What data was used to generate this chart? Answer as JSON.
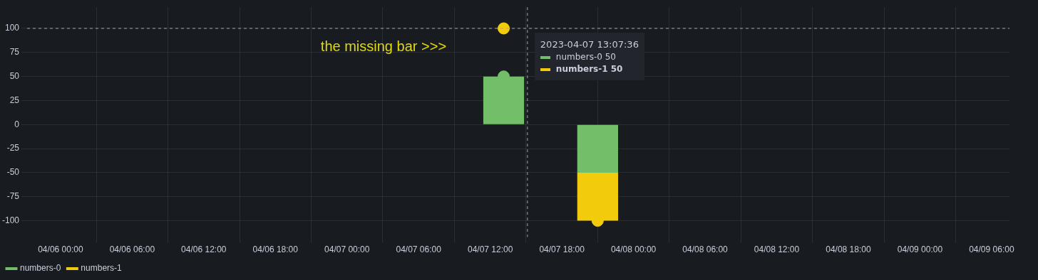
{
  "chart_data": {
    "type": "bar",
    "stacked": true,
    "x": [
      "2023-04-07T13:07:36",
      "2023-04-07T21:00"
    ],
    "series": [
      {
        "name": "numbers-0",
        "color": "#73bf69",
        "values": [
          50,
          -50
        ]
      },
      {
        "name": "numbers-1",
        "color": "#f2cc0c",
        "values": [
          null,
          -50
        ]
      },
      {
        "type": "scatter",
        "x": [
          "2023-04-07T13:07:36",
          "2023-04-07T13:07:36",
          "2023-04-07T21:00"
        ],
        "colors": [
          "#73bf69",
          "#f2cc0c",
          "#f2cc0c"
        ],
        "values": [
          50,
          100,
          -100
        ]
      }
    ],
    "xlim": [
      "2023-04-05T21:12",
      "2023-04-09T07:30"
    ],
    "xticks": [
      {
        "value": "2023-04-06T00:00",
        "label": "04/06 00:00"
      },
      {
        "value": "2023-04-06T06:00",
        "label": "04/06 06:00"
      },
      {
        "value": "2023-04-06T12:00",
        "label": "04/06 12:00"
      },
      {
        "value": "2023-04-06T18:00",
        "label": "04/06 18:00"
      },
      {
        "value": "2023-04-07T00:00",
        "label": "04/07 00:00"
      },
      {
        "value": "2023-04-07T06:00",
        "label": "04/07 06:00"
      },
      {
        "value": "2023-04-07T12:00",
        "label": "04/07 12:00"
      },
      {
        "value": "2023-04-07T18:00",
        "label": "04/07 18:00"
      },
      {
        "value": "2023-04-08T00:00",
        "label": "04/08 00:00"
      },
      {
        "value": "2023-04-08T06:00",
        "label": "04/08 06:00"
      },
      {
        "value": "2023-04-08T12:00",
        "label": "04/08 12:00"
      },
      {
        "value": "2023-04-08T18:00",
        "label": "04/08 18:00"
      },
      {
        "value": "2023-04-09T00:00",
        "label": "04/09 00:00"
      },
      {
        "value": "2023-04-09T06:00",
        "label": "04/09 06:00"
      }
    ],
    "ylim": [
      -117,
      122
    ],
    "yticks": [
      -100,
      -75,
      -50,
      -25,
      0,
      25,
      50,
      75,
      100
    ],
    "grid": true,
    "legend": "bottom left",
    "marker": "circle",
    "ref_lines": [
      {
        "axis": "y",
        "value": 100,
        "line_style": "dashed",
        "color": "#9fa7b3"
      },
      {
        "axis": "x",
        "value": "2023-04-07T15:07",
        "line_style": "dashed",
        "color": "#9fa7b3"
      }
    ],
    "annotations": [
      "the missing bar >>>",
      "2023-04-07 13:07:36",
      "numbers-0    50",
      "numbers-1    50"
    ]
  }
}
